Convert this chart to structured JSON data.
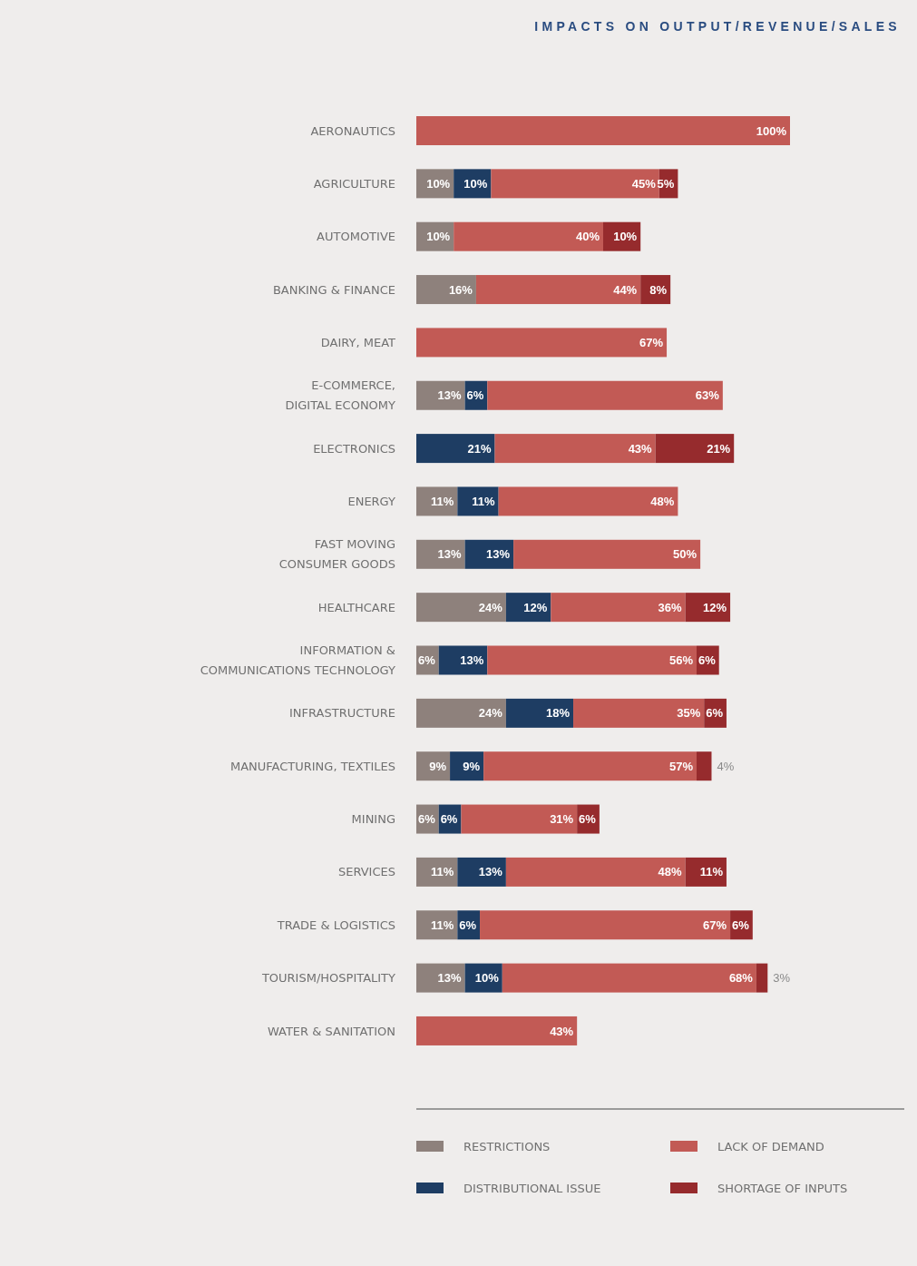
{
  "chart_data": {
    "type": "bar",
    "orientation": "horizontal",
    "stacked": true,
    "title": "IMPACTS ON OUTPUT/REVENUE/SALES",
    "legend": "bottom",
    "categories": [
      "AERONAUTICS",
      "AGRICULTURE",
      "AUTOMOTIVE",
      "BANKING & FINANCE",
      "DAIRY, MEAT",
      "E-COMMERCE, DIGITAL ECONOMY",
      "ELECTRONICS",
      "ENERGY",
      "FAST MOVING CONSUMER GOODS",
      "HEALTHCARE",
      "INFORMATION & COMMUNICATIONS TECHNOLOGY",
      "INFRASTRUCTURE",
      "MANUFACTURING, TEXTILES",
      "MINING",
      "SERVICES",
      "TRADE & LOGISTICS",
      "TOURISM/HOSPITALITY",
      "WATER & SANITATION"
    ],
    "series": [
      {
        "name": "RESTRICTIONS",
        "color": "#8e817c",
        "values": [
          null,
          10,
          10,
          16,
          null,
          13,
          null,
          11,
          13,
          24,
          6,
          24,
          9,
          6,
          11,
          11,
          13,
          null
        ],
        "value_labels": [
          null,
          "10%",
          "10%",
          "16%",
          null,
          "13%",
          null,
          "11%",
          "13%",
          "24%",
          "6%",
          "24%",
          "9%",
          "6%",
          "11%",
          "11%",
          "13%",
          null
        ]
      },
      {
        "name": "DISTRIBUTIONAL ISSUE",
        "color": "#1e3d63",
        "values": [
          null,
          10,
          null,
          null,
          null,
          6,
          21,
          11,
          13,
          12,
          13,
          18,
          9,
          6,
          13,
          6,
          10,
          null
        ],
        "value_labels": [
          null,
          "10%",
          null,
          null,
          null,
          "6%",
          "21%",
          "11%",
          "13%",
          "12%",
          "13%",
          "18%",
          "9%",
          "6%",
          "13%",
          "6%",
          "10%",
          null
        ]
      },
      {
        "name": "LACK OF DEMAND",
        "color": "#c25a55",
        "values": [
          100,
          45,
          40,
          44,
          67,
          63,
          43,
          48,
          50,
          36,
          56,
          35,
          57,
          31,
          48,
          67,
          68,
          43
        ],
        "value_labels": [
          "100%",
          "45%",
          "40%",
          "44%",
          "67%",
          "63%",
          "43%",
          "48%",
          "50%",
          "36%",
          "56%",
          "35%",
          "57%",
          "31%",
          "48%",
          "67%",
          "68%",
          "43%"
        ]
      },
      {
        "name": "SHORTAGE OF INPUTS",
        "color": "#962b2d",
        "values": [
          null,
          5,
          10,
          8,
          null,
          null,
          21,
          null,
          null,
          12,
          6,
          6,
          4,
          6,
          11,
          6,
          3,
          null
        ],
        "value_labels": [
          null,
          "5%",
          "10%",
          "8%",
          null,
          null,
          "21%",
          null,
          null,
          "12%",
          "6%",
          "6%",
          "4%",
          "6%",
          "11%",
          "6%",
          "3%",
          null
        ]
      }
    ]
  }
}
